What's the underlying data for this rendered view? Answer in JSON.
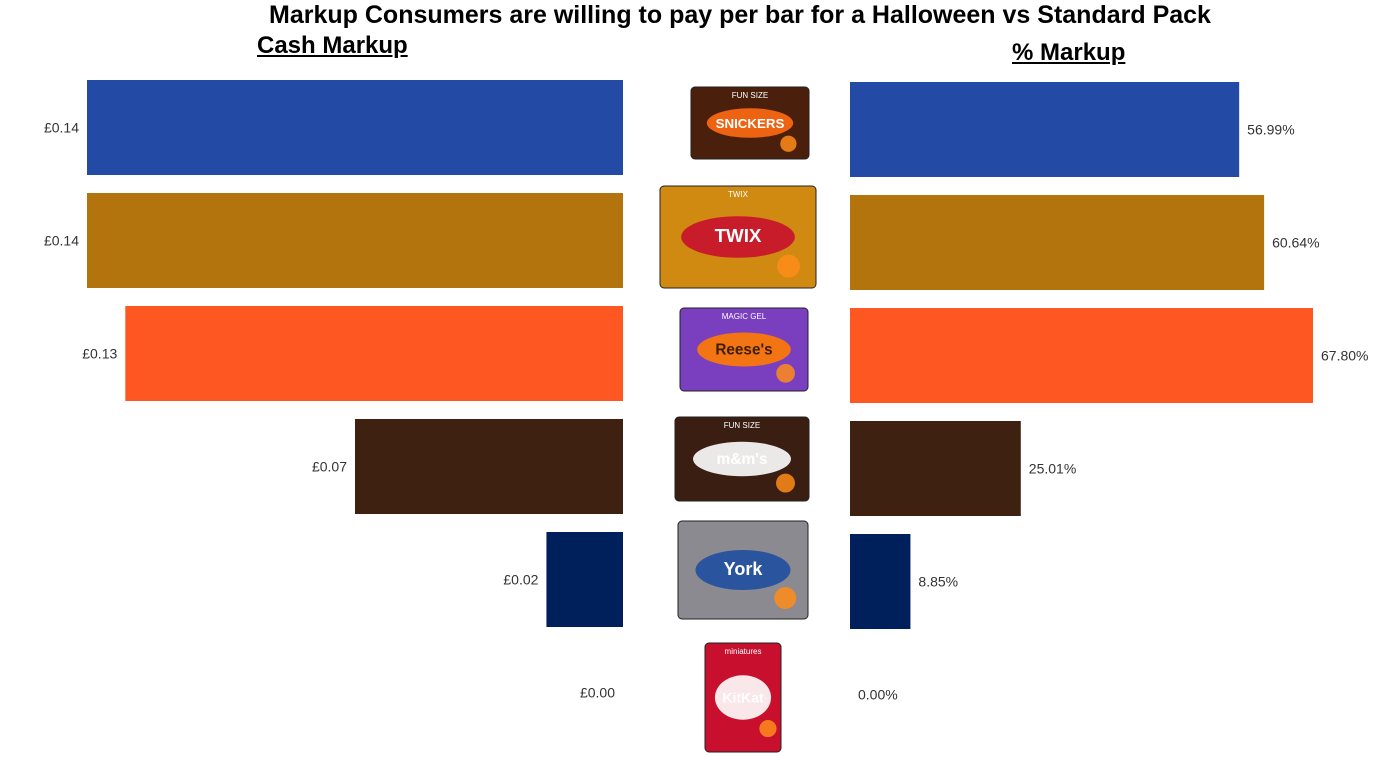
{
  "title": "Markup Consumers are willing to pay per bar for a Halloween vs Standard Pack",
  "left_title": "Cash Markup",
  "right_title": "% Markup",
  "chart_data": [
    {
      "type": "bar",
      "orientation": "horizontal",
      "direction": "right-to-left",
      "title": "Cash Markup",
      "categories": [
        "Snickers",
        "Twix",
        "Reese's",
        "M&M's",
        "York",
        "KitKat"
      ],
      "values": [
        0.14,
        0.14,
        0.13,
        0.07,
        0.02,
        0.0
      ],
      "labels": [
        "£0.14",
        "£0.14",
        "£0.13",
        "£0.07",
        "£0.02",
        "£0.00"
      ],
      "colors": [
        "#234BA6",
        "#B3740E",
        "#FF5722",
        "#3F2112",
        "#00205B",
        "#C8102E"
      ],
      "xlim": [
        0,
        0.14
      ],
      "grid": false
    },
    {
      "type": "bar",
      "orientation": "horizontal",
      "title": "% Markup",
      "categories": [
        "Snickers",
        "Twix",
        "Reese's",
        "M&M's",
        "York",
        "KitKat"
      ],
      "values": [
        56.99,
        60.64,
        67.8,
        25.01,
        8.85,
        0.0
      ],
      "labels": [
        "56.99%",
        "60.64%",
        "67.80%",
        "25.01%",
        "8.85%",
        "0.00%"
      ],
      "colors": [
        "#234BA6",
        "#B3740E",
        "#FF5722",
        "#3F2112",
        "#00205B",
        "#C8102E"
      ],
      "xlim": [
        0,
        67.8
      ],
      "grid": false
    }
  ],
  "packs": [
    {
      "brand": "SNICKERS",
      "tag": "FUN SIZE",
      "icon": "snickers-pack-icon",
      "bg": "#4a1f0c",
      "accent": "#ff6a13",
      "text": "#ffffff"
    },
    {
      "brand": "TWIX",
      "tag": "TWIX",
      "icon": "twix-pack-icon",
      "bg": "#d08a12",
      "accent": "#c8102e",
      "text": "#ffffff"
    },
    {
      "brand": "Reese's",
      "tag": "MAGIC GEL",
      "icon": "reeses-pack-icon",
      "bg": "#7a3fbf",
      "accent": "#ff7a00",
      "text": "#3d1f00"
    },
    {
      "brand": "m&m's",
      "tag": "FUN SIZE",
      "icon": "mms-pack-icon",
      "bg": "#3a1e12",
      "accent": "#ffffff",
      "text": "#ffffff"
    },
    {
      "brand": "York",
      "tag": "",
      "icon": "york-pack-icon",
      "bg": "#8a8a90",
      "accent": "#1f4ea0",
      "text": "#ffffff"
    },
    {
      "brand": "KitKat",
      "tag": "miniatures",
      "icon": "kitkat-pack-icon",
      "bg": "#c8102e",
      "accent": "#ffffff",
      "text": "#ffffff"
    }
  ]
}
